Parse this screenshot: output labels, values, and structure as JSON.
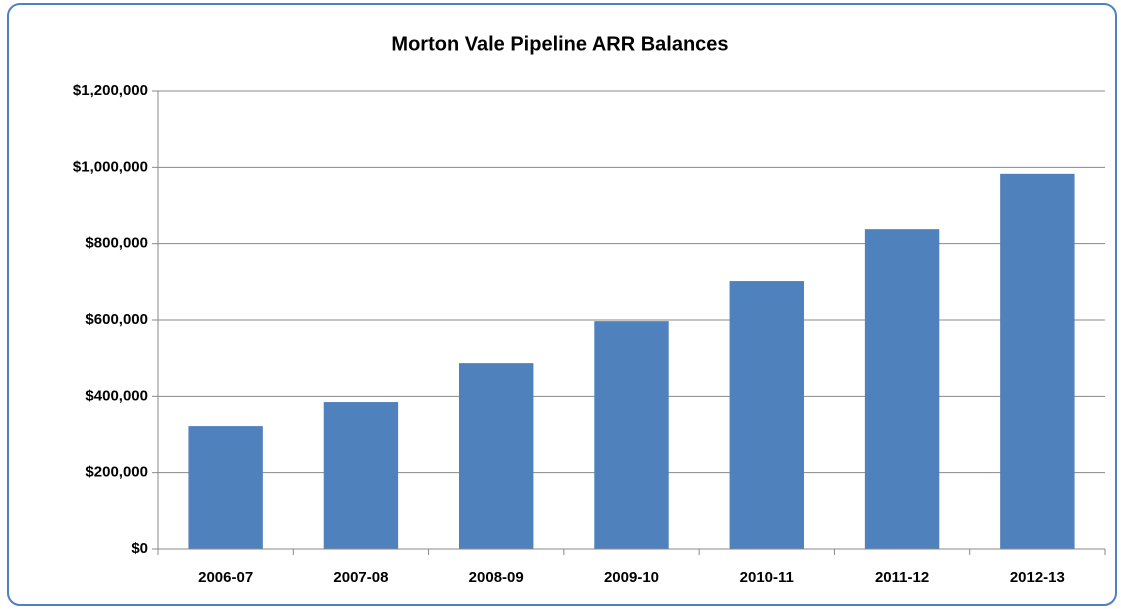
{
  "chart_data": {
    "type": "bar",
    "title": "Morton Vale Pipeline ARR Balances",
    "categories": [
      "2006-07",
      "2007-08",
      "2008-09",
      "2009-10",
      "2010-11",
      "2011-12",
      "2012-13"
    ],
    "values": [
      322000,
      385000,
      487000,
      597000,
      702000,
      838000,
      983000
    ],
    "color": "#4f81bd",
    "ylim": [
      0,
      1200000
    ],
    "yticks": [
      {
        "value": 0,
        "label": "$0"
      },
      {
        "value": 200000,
        "label": "$200,000"
      },
      {
        "value": 400000,
        "label": "$400,000"
      },
      {
        "value": 600000,
        "label": "$600,000"
      },
      {
        "value": 800000,
        "label": "$800,000"
      },
      {
        "value": 1000000,
        "label": "$1,000,000"
      },
      {
        "value": 1200000,
        "label": "$1,200,000"
      }
    ],
    "grid": true
  }
}
